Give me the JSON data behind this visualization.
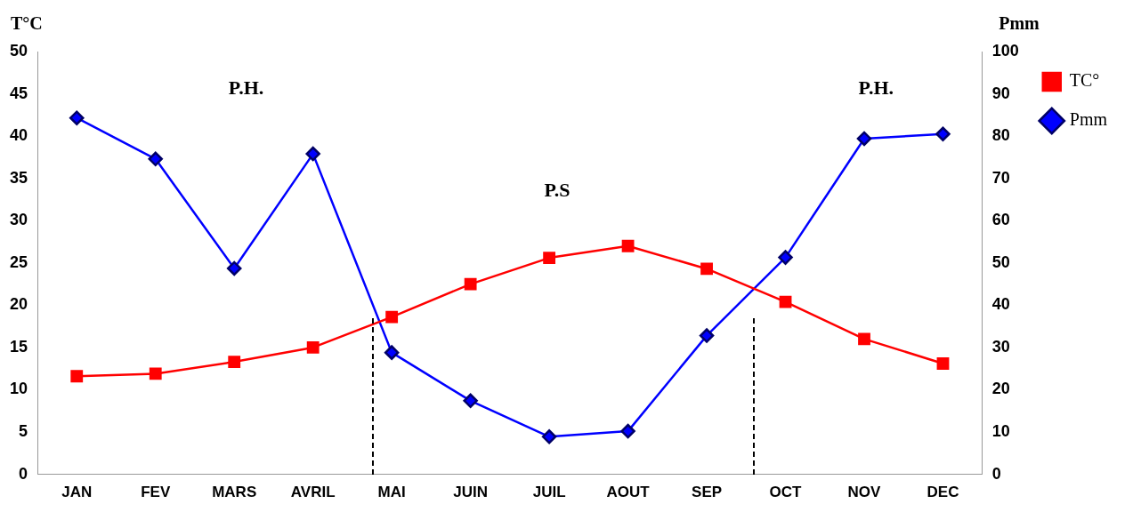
{
  "chart_data": {
    "type": "line",
    "categories": [
      "JAN",
      "FEV",
      "MARS",
      "AVRIL",
      "MAI",
      "JUIN",
      "JUIL",
      "AOUT",
      "SEP",
      "OCT",
      "NOV",
      "DEC"
    ],
    "series": [
      {
        "name": "TC°",
        "color": "#ff0000",
        "marker": "square",
        "values": [
          11.6,
          11.9,
          13.3,
          15.0,
          18.6,
          22.5,
          25.6,
          27.0,
          24.3,
          20.4,
          16.0,
          13.1
        ]
      },
      {
        "name": "Pmm",
        "color": "#0000ff",
        "marker": "diamond",
        "axis": "y2",
        "values": [
          84.3,
          74.6,
          48.7,
          75.8,
          28.8,
          17.4,
          8.9,
          10.2,
          32.8,
          51.3,
          79.4,
          80.5
        ]
      }
    ],
    "ylabel": "T°C",
    "y2label": "Pmm",
    "ylim": [
      0,
      50
    ],
    "yticks": [
      0,
      5,
      10,
      15,
      20,
      25,
      30,
      35,
      40,
      45,
      50
    ],
    "y2lim": [
      0,
      100
    ],
    "y2ticks": [
      0,
      10,
      20,
      30,
      40,
      50,
      60,
      70,
      80,
      90,
      100
    ],
    "annotations": [
      "P.H.",
      "P.S",
      "P.H."
    ],
    "legend": "right",
    "grid": false,
    "line_style": "solid"
  }
}
